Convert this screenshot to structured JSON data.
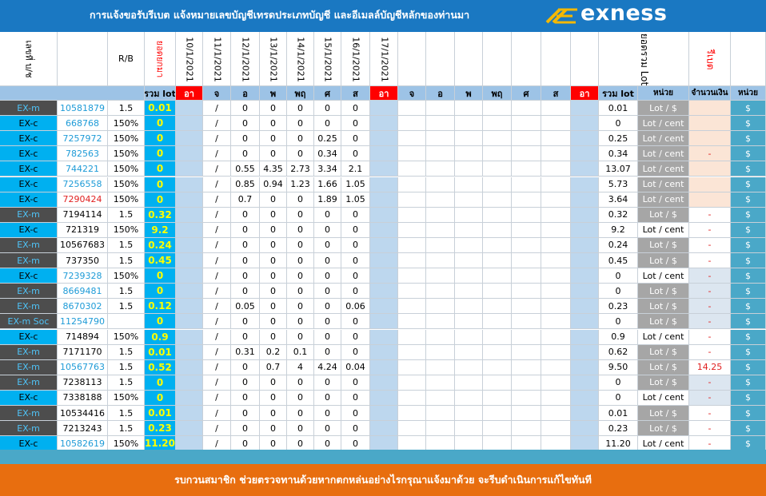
{
  "banner": {
    "title": "การแจ้งขอรับรีเบต   แจ้งหมายเลขบัญชีเทรดประเภทบัญชี และอีเมลล์บัญชีหลักของท่านมา",
    "brand": "exness"
  },
  "headers": {
    "account_col": "เลขที่ บ/ช",
    "rb_col": "R/B",
    "carried_col": "ยอดยกมา",
    "dates": [
      "10/1/2021",
      "11/1/2021",
      "12/1/2021",
      "13/1/2021",
      "14/1/2021",
      "15/1/2021",
      "16/1/2021",
      "17/1/2021"
    ],
    "total_lot_rotated": "ยอดรวม Lot",
    "rebate_col": "รีเบต"
  },
  "subheaders": {
    "total_lot_left": "รวม lot",
    "days_week1": [
      "อา",
      "จ",
      "อ",
      "พ",
      "พฤ",
      "ศ",
      "ส",
      "อา"
    ],
    "days_week2": [
      "จ",
      "อ",
      "พ",
      "พฤ",
      "ศ",
      "ส",
      "อา"
    ],
    "total_lot_right": "รวม lot",
    "unit": "หน่วย",
    "amount": "จำนวนเงิน",
    "unit2": "หน่วย"
  },
  "colors": {
    "dark": "#4d4d4d",
    "blue": "#00b0f0",
    "yellow": "#ffff00",
    "red": "#ff0000",
    "light_blue": "#9dc3e6",
    "peach": "#fbe5d6",
    "grey_blue": "#dce6f0",
    "unit_grey": "#a6a6a6",
    "dollar_teal": "#4aa8c8"
  },
  "rows": [
    {
      "type": "EX-m",
      "account": "10581879",
      "rb": "1.5",
      "carried": "0.01",
      "sep": "/",
      "days": [
        "0",
        "0",
        "0",
        "0",
        "0"
      ],
      "total": "0.01",
      "unit": "Lot / $",
      "amount": "",
      "dollar": "$",
      "type_bg": "dark",
      "acct_color": "blue",
      "unit_bg": "grey",
      "amount_bg": "peach"
    },
    {
      "type": "EX-c",
      "account": "668768",
      "rb": "150%",
      "carried": "0",
      "sep": "/",
      "days": [
        "0",
        "0",
        "0",
        "0",
        "0"
      ],
      "total": "0",
      "unit": "Lot / cent",
      "amount": "",
      "dollar": "$",
      "type_bg": "blue",
      "acct_color": "blue",
      "unit_bg": "grey",
      "amount_bg": "peach"
    },
    {
      "type": "EX-c",
      "account": "7257972",
      "rb": "150%",
      "carried": "0",
      "sep": "/",
      "days": [
        "0",
        "0",
        "0",
        "0.25",
        "0"
      ],
      "total": "0.25",
      "unit": "Lot / cent",
      "amount": "",
      "dollar": "$",
      "type_bg": "blue",
      "acct_color": "blue",
      "unit_bg": "grey",
      "amount_bg": "peach"
    },
    {
      "type": "EX-c",
      "account": "782563",
      "rb": "150%",
      "carried": "0",
      "sep": "/",
      "days": [
        "0",
        "0",
        "0",
        "0.34",
        "0"
      ],
      "total": "0.34",
      "unit": "Lot / cent",
      "amount": "-",
      "dollar": "$",
      "type_bg": "blue",
      "acct_color": "blue",
      "unit_bg": "grey",
      "amount_bg": "peach"
    },
    {
      "type": "EX-c",
      "account": "744221",
      "rb": "150%",
      "carried": "0",
      "sep": "/",
      "days": [
        "0.55",
        "4.35",
        "2.73",
        "3.34",
        "2.1"
      ],
      "total": "13.07",
      "unit": "Lot / cent",
      "amount": "",
      "dollar": "$",
      "type_bg": "blue",
      "acct_color": "blue",
      "unit_bg": "grey",
      "amount_bg": "peach"
    },
    {
      "type": "EX-c",
      "account": "7256558",
      "rb": "150%",
      "carried": "0",
      "sep": "/",
      "days": [
        "0.85",
        "0.94",
        "1.23",
        "1.66",
        "1.05"
      ],
      "total": "5.73",
      "unit": "Lot / cent",
      "amount": "",
      "dollar": "$",
      "type_bg": "blue",
      "acct_color": "blue",
      "unit_bg": "grey",
      "amount_bg": "peach"
    },
    {
      "type": "EX-c",
      "account": "7290424",
      "rb": "150%",
      "carried": "0",
      "sep": "/",
      "days": [
        "0.7",
        "0",
        "0",
        "1.89",
        "1.05"
      ],
      "total": "3.64",
      "unit": "Lot / cent",
      "amount": "",
      "dollar": "$",
      "type_bg": "blue",
      "acct_color": "red",
      "unit_bg": "grey",
      "amount_bg": "peach"
    },
    {
      "type": "EX-m",
      "account": "7194114",
      "rb": "1.5",
      "carried": "0.32",
      "sep": "/",
      "days": [
        "0",
        "0",
        "0",
        "0",
        "0"
      ],
      "total": "0.32",
      "unit": "Lot / $",
      "amount": "-",
      "dollar": "$",
      "type_bg": "dark",
      "acct_color": "black",
      "unit_bg": "grey",
      "amount_bg": "white"
    },
    {
      "type": "EX-c",
      "account": "721319",
      "rb": "150%",
      "carried": "9.2",
      "sep": "/",
      "days": [
        "0",
        "0",
        "0",
        "0",
        "0"
      ],
      "total": "9.2",
      "unit": "Lot / cent",
      "amount": "-",
      "dollar": "$",
      "type_bg": "blue",
      "acct_color": "black",
      "unit_bg": "white",
      "amount_bg": "white"
    },
    {
      "type": "EX-m",
      "account": "10567683",
      "rb": "1.5",
      "carried": "0.24",
      "sep": "/",
      "days": [
        "0",
        "0",
        "0",
        "0",
        "0"
      ],
      "total": "0.24",
      "unit": "Lot / $",
      "amount": "-",
      "dollar": "$",
      "type_bg": "dark",
      "acct_color": "black",
      "unit_bg": "grey",
      "amount_bg": "white"
    },
    {
      "type": "EX-m",
      "account": "737350",
      "rb": "1.5",
      "carried": "0.45",
      "sep": "/",
      "days": [
        "0",
        "0",
        "0",
        "0",
        "0"
      ],
      "total": "0.45",
      "unit": "Lot / $",
      "amount": "-",
      "dollar": "$",
      "type_bg": "dark",
      "acct_color": "black",
      "unit_bg": "grey",
      "amount_bg": "white"
    },
    {
      "type": "EX-c",
      "account": "7239328",
      "rb": "150%",
      "carried": "0",
      "sep": "/",
      "days": [
        "0",
        "0",
        "0",
        "0",
        "0"
      ],
      "total": "0",
      "unit": "Lot / cent",
      "amount": "-",
      "dollar": "$",
      "type_bg": "blue",
      "acct_color": "blue",
      "unit_bg": "white",
      "amount_bg": "greyblue"
    },
    {
      "type": "EX-m",
      "account": "8669481",
      "rb": "1.5",
      "carried": "0",
      "sep": "/",
      "days": [
        "0",
        "0",
        "0",
        "0",
        "0"
      ],
      "total": "0",
      "unit": "Lot / $",
      "amount": "-",
      "dollar": "$",
      "type_bg": "dark",
      "acct_color": "blue",
      "unit_bg": "grey",
      "amount_bg": "greyblue"
    },
    {
      "type": "EX-m",
      "account": "8670302",
      "rb": "1.5",
      "carried": "0.12",
      "sep": "/",
      "days": [
        "0.05",
        "0",
        "0",
        "0",
        "0.06"
      ],
      "total": "0.23",
      "unit": "Lot / $",
      "amount": "-",
      "dollar": "$",
      "type_bg": "dark",
      "acct_color": "blue",
      "unit_bg": "grey",
      "amount_bg": "greyblue"
    },
    {
      "type": "EX-m Soc",
      "account": "11254790",
      "rb": "",
      "carried": "0",
      "sep": "/",
      "days": [
        "0",
        "0",
        "0",
        "0",
        "0"
      ],
      "total": "0",
      "unit": "Lot / $",
      "amount": "-",
      "dollar": "$",
      "type_bg": "dark",
      "acct_color": "blue",
      "unit_bg": "grey",
      "amount_bg": "greyblue"
    },
    {
      "type": "EX-c",
      "account": "714894",
      "rb": "150%",
      "carried": "0.9",
      "sep": "/",
      "days": [
        "0",
        "0",
        "0",
        "0",
        "0"
      ],
      "total": "0.9",
      "unit": "Lot / cent",
      "amount": "-",
      "dollar": "$",
      "type_bg": "blue",
      "acct_color": "black",
      "unit_bg": "white",
      "amount_bg": "white"
    },
    {
      "type": "EX-m",
      "account": "7171170",
      "rb": "1.5",
      "carried": "0.01",
      "sep": "/",
      "days": [
        "0.31",
        "0.2",
        "0.1",
        "0",
        "0"
      ],
      "total": "0.62",
      "unit": "Lot / $",
      "amount": "-",
      "dollar": "$",
      "type_bg": "dark",
      "acct_color": "black",
      "unit_bg": "grey",
      "amount_bg": "white"
    },
    {
      "type": "EX-m",
      "account": "10567763",
      "rb": "1.5",
      "carried": "0.52",
      "sep": "/",
      "days": [
        "0",
        "0.7",
        "4",
        "4.24",
        "0.04"
      ],
      "total": "9.50",
      "unit": "Lot / $",
      "amount": "14.25",
      "dollar": "$",
      "type_bg": "dark",
      "acct_color": "blue",
      "unit_bg": "grey",
      "amount_bg": "white"
    },
    {
      "type": "EX-m",
      "account": "7238113",
      "rb": "1.5",
      "carried": "0",
      "sep": "/",
      "days": [
        "0",
        "0",
        "0",
        "0",
        "0"
      ],
      "total": "0",
      "unit": "Lot / $",
      "amount": "-",
      "dollar": "$",
      "type_bg": "dark",
      "acct_color": "black",
      "unit_bg": "grey",
      "amount_bg": "greyblue"
    },
    {
      "type": "EX-c",
      "account": "7338188",
      "rb": "150%",
      "carried": "0",
      "sep": "/",
      "days": [
        "0",
        "0",
        "0",
        "0",
        "0"
      ],
      "total": "0",
      "unit": "Lot / cent",
      "amount": "-",
      "dollar": "$",
      "type_bg": "blue",
      "acct_color": "black",
      "unit_bg": "white",
      "amount_bg": "greyblue"
    },
    {
      "type": "EX-m",
      "account": "10534416",
      "rb": "1.5",
      "carried": "0.01",
      "sep": "/",
      "days": [
        "0",
        "0",
        "0",
        "0",
        "0"
      ],
      "total": "0.01",
      "unit": "Lot / $",
      "amount": "-",
      "dollar": "$",
      "type_bg": "dark",
      "acct_color": "black",
      "unit_bg": "grey",
      "amount_bg": "white"
    },
    {
      "type": "EX-m",
      "account": "7213243",
      "rb": "1.5",
      "carried": "0.23",
      "sep": "/",
      "days": [
        "0",
        "0",
        "0",
        "0",
        "0"
      ],
      "total": "0.23",
      "unit": "Lot / $",
      "amount": "-",
      "dollar": "$",
      "type_bg": "dark",
      "acct_color": "black",
      "unit_bg": "grey",
      "amount_bg": "white"
    },
    {
      "type": "EX-c",
      "account": "10582619",
      "rb": "150%",
      "carried": "11.20",
      "sep": "/",
      "days": [
        "0",
        "0",
        "0",
        "0",
        "0"
      ],
      "total": "11.20",
      "unit": "Lot / cent",
      "amount": "-",
      "dollar": "$",
      "type_bg": "blue",
      "acct_color": "blue",
      "unit_bg": "white",
      "amount_bg": "white"
    }
  ],
  "footer": "รบกวนสมาชิก ช่วยตรวจทานด้วยหากตกหล่นอย่างไรกรุณาแจ้งมาด้วย จะรีบดำเนินการแก้ไขทันที"
}
